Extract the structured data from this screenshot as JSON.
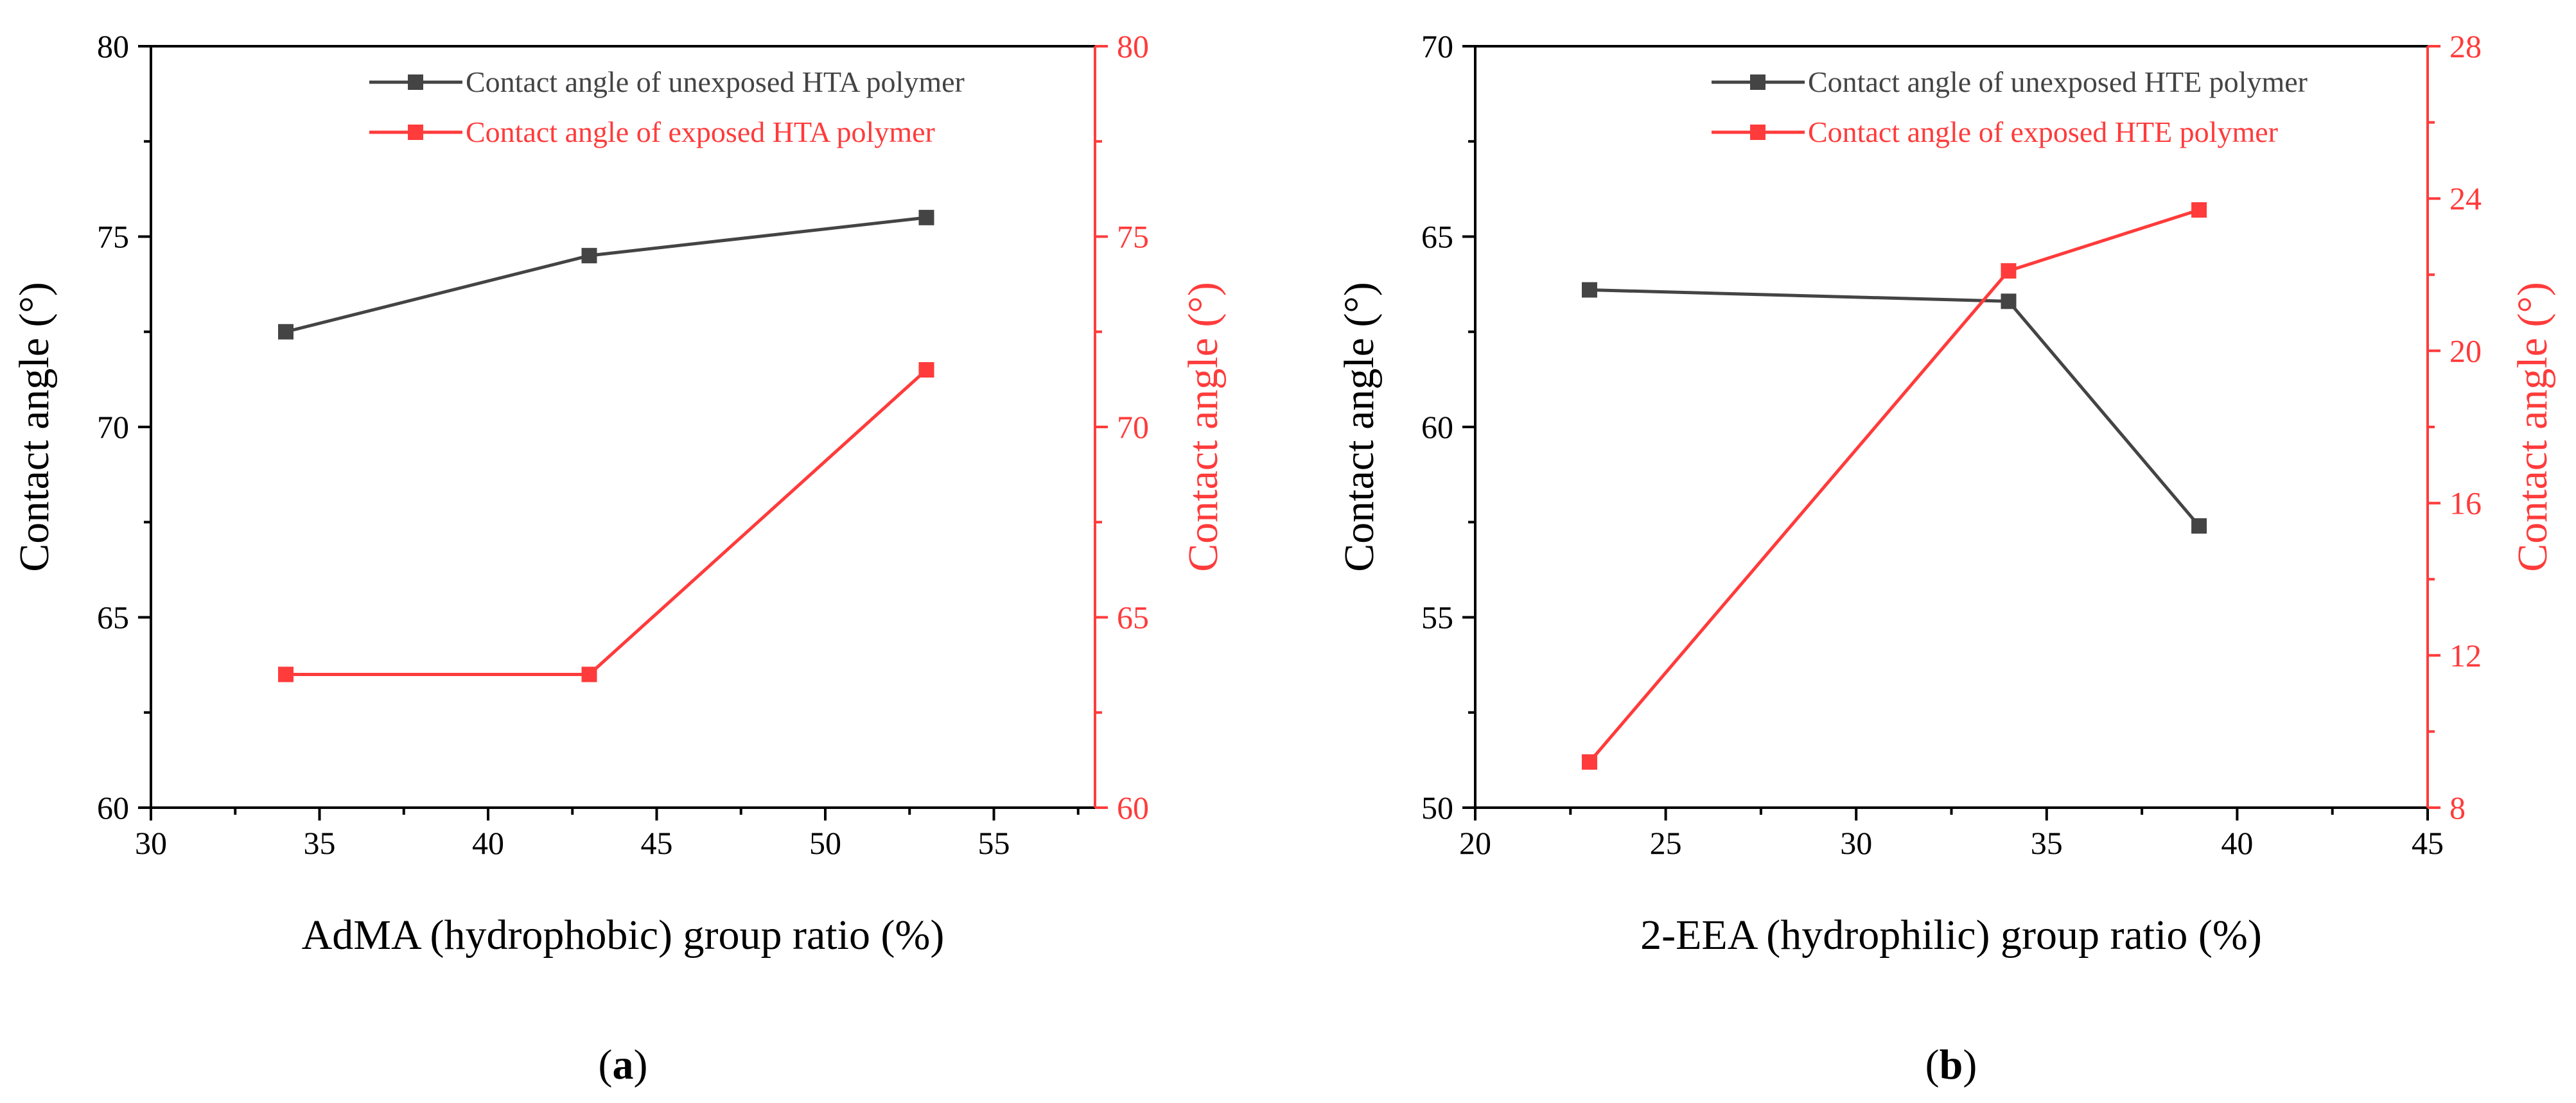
{
  "colors": {
    "left_axis": "#000000",
    "right_axis": "#ff3b3b",
    "unexposed_series": "#444444",
    "exposed_series": "#ff3b3b"
  },
  "chart_data": [
    {
      "type": "line",
      "panel_label": "a",
      "xlabel": "AdMA (hydrophobic) group ratio (%)",
      "ylabel": "Contact angle (°)",
      "y2label": "Contact angle (°)",
      "xlim": [
        30,
        58
      ],
      "xticks": [
        30,
        35,
        40,
        45,
        50,
        55
      ],
      "ylim": [
        60,
        80
      ],
      "yticks": [
        60,
        65,
        70,
        75,
        80
      ],
      "y2lim": [
        60,
        80
      ],
      "y2ticks": [
        60,
        65,
        70,
        75,
        80
      ],
      "legend_position": "top-right",
      "grid": false,
      "series": [
        {
          "name": "Contact angle of unexposed HTA polymer",
          "axis": "left",
          "color": "#444444",
          "x": [
            34,
            43,
            53
          ],
          "values": [
            72.5,
            74.5,
            75.5
          ]
        },
        {
          "name": "Contact angle of exposed HTA polymer",
          "axis": "right",
          "color": "#ff3b3b",
          "x": [
            34,
            43,
            53
          ],
          "values": [
            63.5,
            63.5,
            71.5
          ]
        }
      ]
    },
    {
      "type": "line",
      "panel_label": "b",
      "xlabel": "2-EEA (hydrophilic) group ratio (%)",
      "ylabel": "Contact angle (°)",
      "y2label": "Contact angle (°)",
      "xlim": [
        20,
        45
      ],
      "xticks": [
        20,
        25,
        30,
        35,
        40,
        45
      ],
      "ylim": [
        50,
        70
      ],
      "yticks": [
        50,
        55,
        60,
        65,
        70
      ],
      "y2lim": [
        8,
        28
      ],
      "y2ticks": [
        8,
        12,
        16,
        20,
        24,
        28
      ],
      "legend_position": "top-right",
      "grid": false,
      "series": [
        {
          "name": "Contact angle of unexposed HTE polymer",
          "axis": "left",
          "color": "#444444",
          "x": [
            23,
            34,
            39
          ],
          "values": [
            63.6,
            63.3,
            57.4
          ]
        },
        {
          "name": "Contact angle of exposed HTE polymer",
          "axis": "right",
          "color": "#ff3b3b",
          "x": [
            23,
            34,
            39
          ],
          "values": [
            9.2,
            22.1,
            23.7
          ]
        }
      ]
    }
  ]
}
